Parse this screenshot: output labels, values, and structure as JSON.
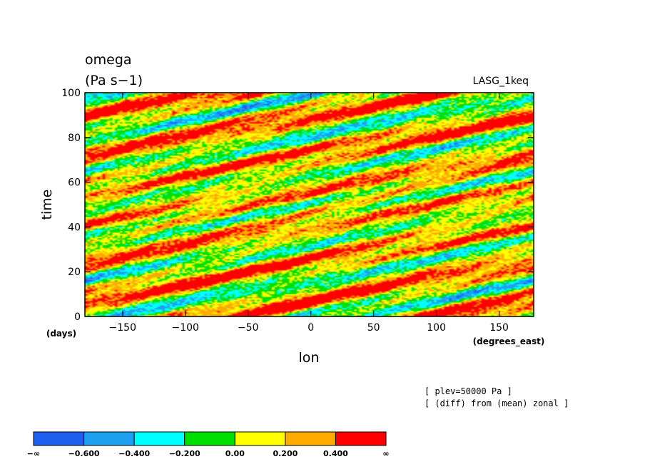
{
  "chart_data": {
    "type": "heatmap",
    "title": "omega",
    "units": "(Pa s−1)",
    "model": "LASG_1keq",
    "xlabel": "lon",
    "ylabel": "time",
    "x_units": "(degrees_east)",
    "y_units": "(days)",
    "xlim": [
      -180,
      177.5
    ],
    "ylim": [
      0,
      100
    ],
    "x_ticks": [
      -150,
      -100,
      -50,
      0,
      50,
      100,
      150
    ],
    "x_tick_labels": [
      "−150",
      "−100",
      "−50",
      "0",
      "50",
      "100",
      "150"
    ],
    "y_ticks": [
      0,
      20,
      40,
      60,
      80,
      100
    ],
    "y_tick_labels": [
      "0",
      "20",
      "40",
      "60",
      "80",
      "100"
    ],
    "notes": [
      "[ plev=50000 Pa ]",
      "[ (diff) from (mean) zonal ]"
    ],
    "colorbar": {
      "colors": [
        "#1e5ff0",
        "#1e9ff0",
        "#00ffff",
        "#00e000",
        "#ffff00",
        "#ffaa00",
        "#ff0000"
      ],
      "labels": [
        "−∞",
        "−0.600",
        "−0.400",
        "−0.200",
        "0.00",
        "0.200",
        "0.400",
        "∞"
      ]
    },
    "grid": false
  }
}
